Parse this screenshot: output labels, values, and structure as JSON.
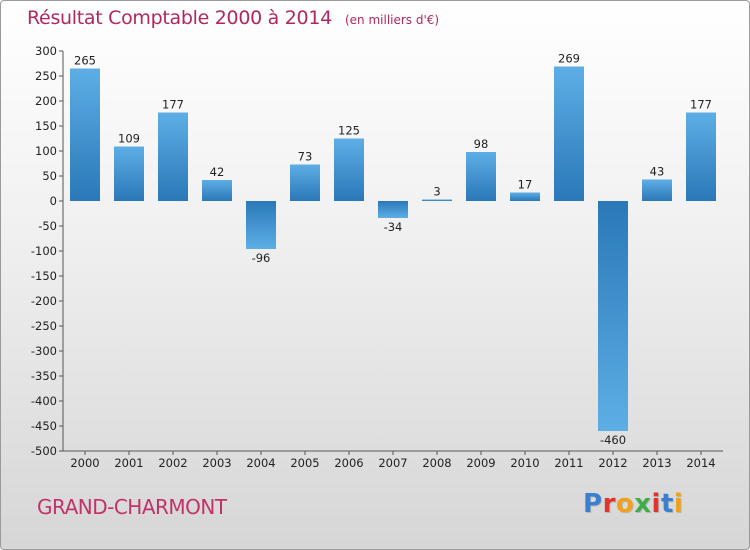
{
  "header": {
    "title": "Résultat Comptable 2000 à 2014",
    "unit": "(en milliers d'€)"
  },
  "footer": {
    "commune": "GRAND-CHARMONT",
    "brand": "Proxiti",
    "brand_colors": [
      "#3a7fd0",
      "#e0342f",
      "#f0a11c",
      "#3fae49",
      "#e0342f",
      "#3a7fd0",
      "#f0a11c"
    ]
  },
  "chart_data": {
    "type": "bar",
    "title": "Résultat Comptable 2000 à 2014",
    "ylabel": "(en milliers d'€)",
    "xlabel": "",
    "categories": [
      "2000",
      "2001",
      "2002",
      "2003",
      "2004",
      "2005",
      "2006",
      "2007",
      "2008",
      "2009",
      "2010",
      "2011",
      "2012",
      "2013",
      "2014"
    ],
    "values": [
      265,
      109,
      177,
      42,
      -96,
      73,
      125,
      -34,
      3,
      98,
      17,
      269,
      -460,
      43,
      177
    ],
    "ylim": [
      -500,
      300
    ],
    "yticks": [
      300,
      250,
      200,
      150,
      100,
      50,
      0,
      -50,
      -100,
      -150,
      -200,
      -250,
      -300,
      -350,
      -400,
      -450,
      -500
    ],
    "grid": false,
    "bar_color_light": "#5aa7e0",
    "bar_color_dark": "#2a78b8"
  }
}
